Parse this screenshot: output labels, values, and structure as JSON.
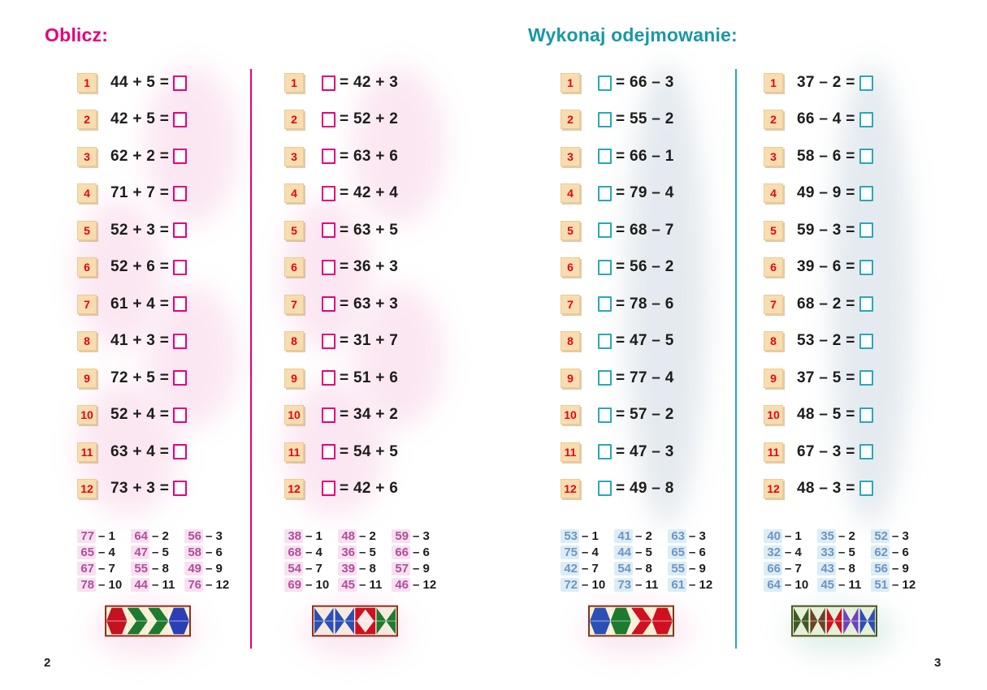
{
  "left_page": {
    "title": "Oblicz:",
    "accent_color": "#e5007d",
    "divider_color": "#e5007d",
    "page_number": "2",
    "columns": [
      {
        "id": "c1",
        "box_side": "right",
        "box_color": "#e5007d",
        "answer_color": "#b04f9f",
        "answer_highlight": "#f9e0ef",
        "problems": [
          {
            "num": "1",
            "text": "44 + 5 ="
          },
          {
            "num": "2",
            "text": "42 + 5 ="
          },
          {
            "num": "3",
            "text": "62 + 2 ="
          },
          {
            "num": "4",
            "text": "71 + 7 ="
          },
          {
            "num": "5",
            "text": "52 + 3 ="
          },
          {
            "num": "6",
            "text": "52 + 6 ="
          },
          {
            "num": "7",
            "text": "61 + 4 ="
          },
          {
            "num": "8",
            "text": "41 + 3 ="
          },
          {
            "num": "9",
            "text": "72 + 5 ="
          },
          {
            "num": "10",
            "text": "52 + 4 ="
          },
          {
            "num": "11",
            "text": "63 + 4 ="
          },
          {
            "num": "12",
            "text": "73 + 3 ="
          }
        ],
        "answer_key": [
          {
            "value": "77",
            "label": "1"
          },
          {
            "value": "64",
            "label": "2"
          },
          {
            "value": "56",
            "label": "3"
          },
          {
            "value": "65",
            "label": "4"
          },
          {
            "value": "47",
            "label": "5"
          },
          {
            "value": "58",
            "label": "6"
          },
          {
            "value": "67",
            "label": "7"
          },
          {
            "value": "55",
            "label": "8"
          },
          {
            "value": "49",
            "label": "9"
          },
          {
            "value": "78",
            "label": "10"
          },
          {
            "value": "44",
            "label": "11"
          },
          {
            "value": "76",
            "label": "12"
          }
        ],
        "strip": {
          "background": "#f7eed6",
          "border": "#8a3320",
          "segments": [
            {
              "shape": "hexagon",
              "color": "#c41220"
            },
            {
              "shape": "chevron-right",
              "color": "#1d7a2e"
            },
            {
              "shape": "chevron-right",
              "color": "#1d7a2e"
            },
            {
              "shape": "hexagon",
              "color": "#2b3fb5"
            }
          ]
        }
      },
      {
        "id": "c2",
        "box_side": "left",
        "box_color": "#e5007d",
        "answer_color": "#b04f9f",
        "answer_highlight": "#f9e0ef",
        "problems": [
          {
            "num": "1",
            "text": "= 42 + 3"
          },
          {
            "num": "2",
            "text": "= 52 + 2"
          },
          {
            "num": "3",
            "text": "= 63 + 6"
          },
          {
            "num": "4",
            "text": "= 42 + 4"
          },
          {
            "num": "5",
            "text": "= 63 + 5"
          },
          {
            "num": "6",
            "text": "= 36 + 3"
          },
          {
            "num": "7",
            "text": "= 63 + 3"
          },
          {
            "num": "8",
            "text": "= 31 + 7"
          },
          {
            "num": "9",
            "text": "= 51 + 6"
          },
          {
            "num": "10",
            "text": "= 34 + 2"
          },
          {
            "num": "11",
            "text": "= 54 + 5"
          },
          {
            "num": "12",
            "text": "= 42 + 6"
          }
        ],
        "answer_key": [
          {
            "value": "38",
            "label": "1"
          },
          {
            "value": "48",
            "label": "2"
          },
          {
            "value": "59",
            "label": "3"
          },
          {
            "value": "68",
            "label": "4"
          },
          {
            "value": "36",
            "label": "5"
          },
          {
            "value": "66",
            "label": "6"
          },
          {
            "value": "54",
            "label": "7"
          },
          {
            "value": "39",
            "label": "8"
          },
          {
            "value": "57",
            "label": "9"
          },
          {
            "value": "69",
            "label": "10"
          },
          {
            "value": "45",
            "label": "11"
          },
          {
            "value": "46",
            "label": "12"
          }
        ],
        "strip": {
          "background": "#f6e9df",
          "border": "#8a3320",
          "segments": [
            {
              "shape": "bowtie",
              "color": "#2b4fb5"
            },
            {
              "shape": "bowtie",
              "color": "#2b4fb5"
            },
            {
              "shape": "diamond-block",
              "color": "#d01020",
              "accent": "#f8e9e4"
            },
            {
              "shape": "bowtie",
              "color": "#1d7a2e"
            }
          ]
        }
      }
    ]
  },
  "right_page": {
    "title": "Wykonaj odejmowanie:",
    "accent_color": "#1898a8",
    "divider_color": "#2aa8b8",
    "page_number": "3",
    "columns": [
      {
        "id": "c3",
        "box_side": "left",
        "box_color": "#2aa8b8",
        "answer_color": "#6e95c5",
        "answer_highlight": "#dcedf4",
        "problems": [
          {
            "num": "1",
            "text": "= 66 – 3"
          },
          {
            "num": "2",
            "text": "= 55 – 2"
          },
          {
            "num": "3",
            "text": "= 66 – 1"
          },
          {
            "num": "4",
            "text": "= 79 – 4"
          },
          {
            "num": "5",
            "text": "= 68 – 7"
          },
          {
            "num": "6",
            "text": "= 56 – 2"
          },
          {
            "num": "7",
            "text": "= 78 – 6"
          },
          {
            "num": "8",
            "text": "= 47 – 5"
          },
          {
            "num": "9",
            "text": "= 77 – 4"
          },
          {
            "num": "10",
            "text": "= 57 – 2"
          },
          {
            "num": "11",
            "text": "= 47 – 3"
          },
          {
            "num": "12",
            "text": "= 49 – 8"
          }
        ],
        "answer_key": [
          {
            "value": "53",
            "label": "1"
          },
          {
            "value": "41",
            "label": "2"
          },
          {
            "value": "63",
            "label": "3"
          },
          {
            "value": "75",
            "label": "4"
          },
          {
            "value": "44",
            "label": "5"
          },
          {
            "value": "65",
            "label": "6"
          },
          {
            "value": "42",
            "label": "7"
          },
          {
            "value": "54",
            "label": "8"
          },
          {
            "value": "55",
            "label": "9"
          },
          {
            "value": "72",
            "label": "10"
          },
          {
            "value": "73",
            "label": "11"
          },
          {
            "value": "61",
            "label": "12"
          }
        ],
        "strip": {
          "background": "#f7eed6",
          "border": "#7a3a1e",
          "segments": [
            {
              "shape": "hexagon",
              "color": "#2b4fb5"
            },
            {
              "shape": "hexagon",
              "color": "#1d7a2e"
            },
            {
              "shape": "chevron-right",
              "color": "#d01020"
            },
            {
              "shape": "hexagon",
              "color": "#d01020"
            }
          ]
        }
      },
      {
        "id": "c4",
        "box_side": "right",
        "box_color": "#2aa8b8",
        "answer_color": "#6e95c5",
        "answer_highlight": "#dcedf4",
        "problems": [
          {
            "num": "1",
            "text": "37 – 2 ="
          },
          {
            "num": "2",
            "text": "66 – 4 ="
          },
          {
            "num": "3",
            "text": "58 – 6 ="
          },
          {
            "num": "4",
            "text": "49 – 9 ="
          },
          {
            "num": "5",
            "text": "59 – 3 ="
          },
          {
            "num": "6",
            "text": "39 – 6 ="
          },
          {
            "num": "7",
            "text": "68 – 2 ="
          },
          {
            "num": "8",
            "text": "53 – 2 ="
          },
          {
            "num": "9",
            "text": "37 – 5 ="
          },
          {
            "num": "10",
            "text": "48 – 5 ="
          },
          {
            "num": "11",
            "text": "67 – 3 ="
          },
          {
            "num": "12",
            "text": "48 – 3 ="
          }
        ],
        "answer_key": [
          {
            "value": "40",
            "label": "1"
          },
          {
            "value": "35",
            "label": "2"
          },
          {
            "value": "52",
            "label": "3"
          },
          {
            "value": "32",
            "label": "4"
          },
          {
            "value": "33",
            "label": "5"
          },
          {
            "value": "62",
            "label": "6"
          },
          {
            "value": "66",
            "label": "7"
          },
          {
            "value": "43",
            "label": "8"
          },
          {
            "value": "56",
            "label": "9"
          },
          {
            "value": "64",
            "label": "10"
          },
          {
            "value": "45",
            "label": "11"
          },
          {
            "value": "51",
            "label": "12"
          }
        ],
        "strip": {
          "background": "#e6f0d8",
          "border": "#49551c",
          "segments": [
            {
              "shape": "bowtie",
              "color": "#3f5a20"
            },
            {
              "shape": "bowtie",
              "color": "#6b4226"
            },
            {
              "shape": "bowtie",
              "color": "#d01020"
            },
            {
              "shape": "bowtie",
              "color": "#7040c0"
            },
            {
              "shape": "bowtie",
              "color": "#2b4fb5"
            }
          ]
        }
      }
    ]
  }
}
